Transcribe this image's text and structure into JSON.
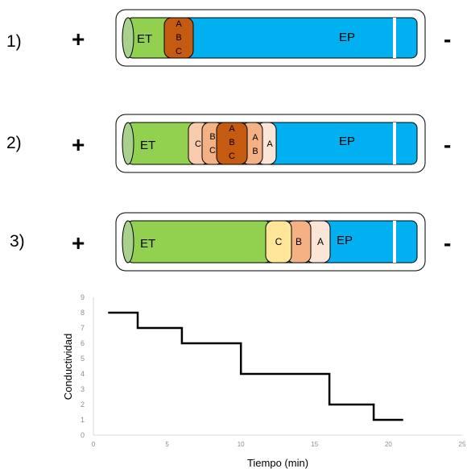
{
  "rows": [
    {
      "number": "1)",
      "plus": "+",
      "minus": "-",
      "et_label": "ET",
      "ep_label": "EP",
      "zones": [
        {
          "lines": [
            "A",
            "B",
            "C"
          ],
          "color": "#c55a11"
        }
      ]
    },
    {
      "number": "2)",
      "plus": "+",
      "minus": "-",
      "et_label": "ET",
      "ep_label": "EP",
      "zones": [
        {
          "lines": [
            "C"
          ],
          "color": "#f8cbad"
        },
        {
          "lines": [
            "B",
            "C"
          ],
          "color": "#f4b183"
        },
        {
          "lines": [
            "A",
            "B",
            "C"
          ],
          "color": "#c55a11"
        },
        {
          "lines": [
            "A",
            "B"
          ],
          "color": "#f4b183"
        },
        {
          "lines": [
            "A"
          ],
          "color": "#fbe5d6"
        }
      ]
    },
    {
      "number": "3)",
      "plus": "+",
      "minus": "-",
      "et_label": "ET",
      "ep_label": "EP",
      "zones": [
        {
          "lines": [
            "C"
          ],
          "color": "#ffe699"
        },
        {
          "lines": [
            "B"
          ],
          "color": "#f4b183"
        },
        {
          "lines": [
            "A"
          ],
          "color": "#fbe5d6"
        }
      ]
    }
  ],
  "colors": {
    "et": "#92d050",
    "ep": "#00b0f0"
  },
  "chart_data": {
    "type": "line",
    "style": "step",
    "xlabel": "Tiempo (min)",
    "ylabel": "Conductividad",
    "xlim": [
      0,
      25
    ],
    "ylim": [
      0,
      9
    ],
    "xticks": [
      "0",
      "5",
      "10",
      "15",
      "20",
      "25"
    ],
    "yticks": [
      "0",
      "1",
      "2",
      "3",
      "4",
      "5",
      "6",
      "7",
      "8",
      "9"
    ],
    "x": [
      1,
      3,
      3,
      6,
      6,
      10,
      10,
      16,
      16,
      19,
      19,
      21
    ],
    "y": [
      8,
      8,
      7,
      7,
      6,
      6,
      4,
      4,
      2,
      2,
      1,
      1
    ],
    "grid": false
  }
}
